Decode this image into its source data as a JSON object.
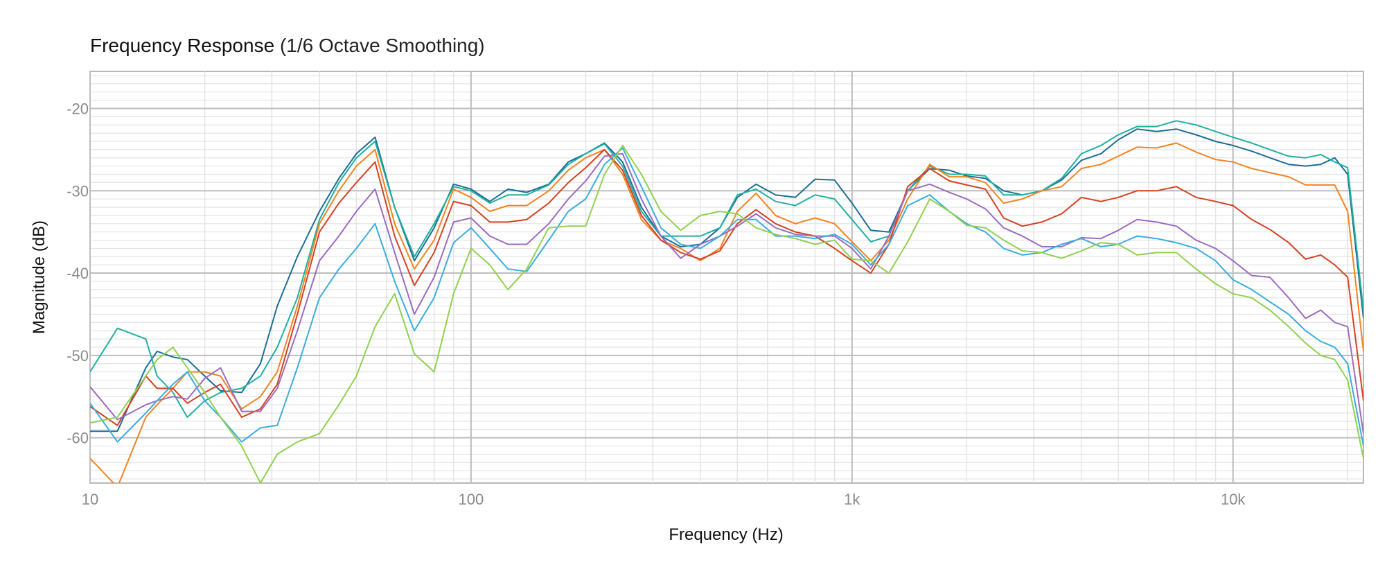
{
  "chart_data": {
    "type": "line",
    "title": "Frequency Response",
    "subtitle": "(1/6 Octave Smoothing)",
    "xlabel": "Frequency (Hz)",
    "ylabel": "Magnitude (dB)",
    "xscale": "log",
    "xlim": [
      10,
      22000
    ],
    "ylim": [
      -65.5,
      -15.5
    ],
    "x_ticks": [
      10,
      100,
      1000,
      10000
    ],
    "x_tick_labels": [
      "10",
      "100",
      "1k",
      "10k"
    ],
    "y_ticks": [
      -20,
      -30,
      -40,
      -50,
      -60
    ],
    "y_tick_labels": [
      "-20",
      "-30",
      "-40",
      "-50",
      "-60"
    ],
    "grid": true,
    "legend": "none",
    "x": [
      10,
      11.8,
      14,
      15,
      16.5,
      18,
      20,
      22,
      25,
      28,
      31,
      35,
      40,
      45,
      50,
      56,
      63,
      71,
      80,
      90,
      100,
      112,
      125,
      140,
      160,
      180,
      200,
      224,
      250,
      280,
      315,
      355,
      400,
      450,
      500,
      560,
      630,
      710,
      800,
      900,
      1000,
      1120,
      1250,
      1400,
      1600,
      1800,
      2000,
      2240,
      2500,
      2800,
      3150,
      3550,
      4000,
      4500,
      5000,
      5600,
      6300,
      7100,
      8000,
      9000,
      10000,
      11200,
      12500,
      14000,
      15500,
      17000,
      18500,
      20000,
      22000
    ],
    "series": [
      {
        "color": "#1a6e96",
        "values": [
          -59.2,
          -59.2,
          -51.5,
          -49.5,
          -50.2,
          -50.5,
          -52.5,
          -54.3,
          -54.5,
          -51,
          -44,
          -38,
          -32.5,
          -28.5,
          -25.5,
          -23.5,
          -32,
          -38.5,
          -34.5,
          -29.2,
          -29.8,
          -31.3,
          -29.8,
          -30.2,
          -29.2,
          -26.5,
          -25.5,
          -24.2,
          -26.5,
          -32,
          -35.5,
          -36.8,
          -36.5,
          -34.5,
          -30.8,
          -29.2,
          -30.5,
          -30.8,
          -28.6,
          -28.7,
          -31.5,
          -34.8,
          -35.0,
          -30.0,
          -27.3,
          -27.5,
          -28.2,
          -28.5,
          -30.0,
          -30.5,
          -30.0,
          -28.7,
          -26.3,
          -25.5,
          -23.8,
          -22.5,
          -22.8,
          -22.5,
          -23.2,
          -24.0,
          -24.5,
          -25.2,
          -26.0,
          -26.8,
          -27.0,
          -26.8,
          -26.0,
          -28.0,
          -45.5
        ]
      },
      {
        "color": "#1fb0a0",
        "values": [
          -52.0,
          -46.7,
          -48.0,
          -52.5,
          -54.5,
          -57.5,
          -55.5,
          -54.5,
          -54.0,
          -52.5,
          -49.0,
          -43.0,
          -33.5,
          -29.0,
          -26.0,
          -24.0,
          -32.0,
          -38.0,
          -34.0,
          -29.5,
          -30.0,
          -31.5,
          -30.5,
          -30.5,
          -29.3,
          -26.8,
          -25.5,
          -24.3,
          -27.0,
          -32.5,
          -35.5,
          -35.5,
          -35.5,
          -34.5,
          -30.5,
          -29.8,
          -31.3,
          -31.8,
          -30.5,
          -31.0,
          -33.5,
          -36.2,
          -35.5,
          -30.0,
          -27.0,
          -28.0,
          -28.0,
          -28.2,
          -30.5,
          -30.5,
          -30.0,
          -28.5,
          -25.5,
          -24.5,
          -23.2,
          -22.2,
          -22.2,
          -21.5,
          -22.0,
          -22.8,
          -23.5,
          -24.2,
          -25.0,
          -25.8,
          -26.0,
          -25.6,
          -26.5,
          -27.2,
          -44.5
        ]
      },
      {
        "color": "#f5821f",
        "values": [
          -62.5,
          -66.0,
          -57.5,
          -56.0,
          -54.0,
          -52.0,
          -52.0,
          -52.5,
          -56.5,
          -55.0,
          -52.0,
          -44.0,
          -34.0,
          -30.0,
          -27.0,
          -25.0,
          -34.0,
          -39.5,
          -36.0,
          -29.8,
          -30.8,
          -32.5,
          -31.8,
          -31.8,
          -30.0,
          -27.5,
          -26.0,
          -25.0,
          -28.0,
          -33.5,
          -36.0,
          -37.0,
          -38.5,
          -37.0,
          -32.5,
          -30.3,
          -33.0,
          -34.0,
          -33.3,
          -34.0,
          -36.2,
          -38.5,
          -36.0,
          -31.0,
          -26.8,
          -28.3,
          -28.3,
          -29.0,
          -31.5,
          -31.0,
          -30.0,
          -29.5,
          -27.3,
          -26.8,
          -25.8,
          -24.7,
          -24.8,
          -24.2,
          -25.3,
          -26.2,
          -26.5,
          -27.3,
          -27.8,
          -28.3,
          -29.3,
          -29.3,
          -29.3,
          -32.5,
          -49.5
        ]
      },
      {
        "color": "#d64020",
        "values": [
          -56.2,
          -58.5,
          -52.5,
          -54.0,
          -54.0,
          -55.8,
          -54.5,
          -53.5,
          -57.5,
          -56.5,
          -53.5,
          -45.0,
          -35.0,
          -31.5,
          -29.0,
          -26.5,
          -35.5,
          -41.5,
          -37.5,
          -31.3,
          -31.8,
          -33.8,
          -33.8,
          -33.5,
          -31.5,
          -29.0,
          -27.2,
          -25.0,
          -27.5,
          -33.0,
          -36.0,
          -37.5,
          -38.3,
          -37.3,
          -34.0,
          -32.3,
          -34.0,
          -35.0,
          -35.5,
          -37.0,
          -38.5,
          -40.0,
          -36.5,
          -29.5,
          -27.3,
          -28.8,
          -29.3,
          -29.8,
          -33.3,
          -34.3,
          -33.8,
          -32.8,
          -30.8,
          -31.3,
          -30.8,
          -30.0,
          -30.0,
          -29.5,
          -30.8,
          -31.3,
          -31.8,
          -33.5,
          -34.7,
          -36.3,
          -38.3,
          -37.8,
          -39.0,
          -40.5,
          -55.5
        ]
      },
      {
        "color": "#9b6bc0",
        "values": [
          -53.8,
          -57.8,
          -56.0,
          -55.5,
          -55.0,
          -55.3,
          -52.8,
          -51.5,
          -56.8,
          -56.8,
          -54.0,
          -47.0,
          -38.5,
          -35.5,
          -32.5,
          -29.8,
          -37.5,
          -45.0,
          -40.5,
          -33.8,
          -33.3,
          -35.5,
          -36.5,
          -36.5,
          -34.0,
          -31.0,
          -28.8,
          -25.8,
          -25.5,
          -31.0,
          -35.5,
          -38.2,
          -36.5,
          -35.5,
          -34.3,
          -32.8,
          -34.5,
          -35.3,
          -35.5,
          -35.5,
          -37.0,
          -39.5,
          -35.5,
          -30.0,
          -29.2,
          -30.2,
          -31.0,
          -32.2,
          -34.5,
          -35.5,
          -36.8,
          -36.8,
          -35.7,
          -35.8,
          -34.8,
          -33.5,
          -33.8,
          -34.3,
          -36.0,
          -37.0,
          -38.5,
          -40.3,
          -40.5,
          -43.0,
          -45.5,
          -44.5,
          -46.0,
          -46.5,
          -59.5
        ]
      },
      {
        "color": "#3aace0",
        "values": [
          -55.8,
          -60.5,
          -57.0,
          -55.5,
          -53.5,
          -52.0,
          -55.5,
          -57.5,
          -60.5,
          -58.8,
          -58.5,
          -51.5,
          -43.0,
          -39.5,
          -37.0,
          -34.0,
          -41.0,
          -47.0,
          -43.0,
          -36.3,
          -34.5,
          -37.0,
          -39.5,
          -39.8,
          -36.0,
          -32.5,
          -31.0,
          -26.8,
          -24.8,
          -29.5,
          -34.5,
          -36.5,
          -37.0,
          -35.5,
          -33.5,
          -33.5,
          -35.5,
          -35.5,
          -35.8,
          -35.3,
          -36.5,
          -39.0,
          -36.5,
          -31.8,
          -30.5,
          -32.5,
          -34.0,
          -35.0,
          -37.0,
          -37.8,
          -37.5,
          -36.5,
          -35.8,
          -36.8,
          -36.5,
          -35.5,
          -35.8,
          -36.3,
          -37.0,
          -38.5,
          -40.8,
          -42.0,
          -43.5,
          -45.0,
          -47.0,
          -48.3,
          -49.0,
          -51.0,
          -61.0
        ]
      },
      {
        "color": "#8fd14f",
        "values": [
          -58.2,
          -57.5,
          -52.5,
          -50.5,
          -49.0,
          -51.5,
          -54.5,
          -57.5,
          -61.0,
          -65.5,
          -62.0,
          -60.5,
          -59.5,
          -56.0,
          -52.5,
          -46.5,
          -42.5,
          -49.8,
          -52.0,
          -42.5,
          -37.0,
          -39.0,
          -42.0,
          -39.5,
          -34.5,
          -34.3,
          -34.3,
          -28.0,
          -24.5,
          -28.0,
          -32.5,
          -34.8,
          -33.0,
          -32.5,
          -32.8,
          -34.5,
          -35.3,
          -35.8,
          -36.5,
          -36.0,
          -38.3,
          -38.5,
          -40.0,
          -36.2,
          -31.0,
          -32.5,
          -34.2,
          -34.5,
          -36.0,
          -37.3,
          -37.5,
          -38.2,
          -37.3,
          -36.3,
          -36.5,
          -37.8,
          -37.5,
          -37.5,
          -39.5,
          -41.3,
          -42.5,
          -43.0,
          -44.5,
          -46.5,
          -48.5,
          -50.0,
          -50.5,
          -53.0,
          -62.5
        ]
      }
    ]
  }
}
